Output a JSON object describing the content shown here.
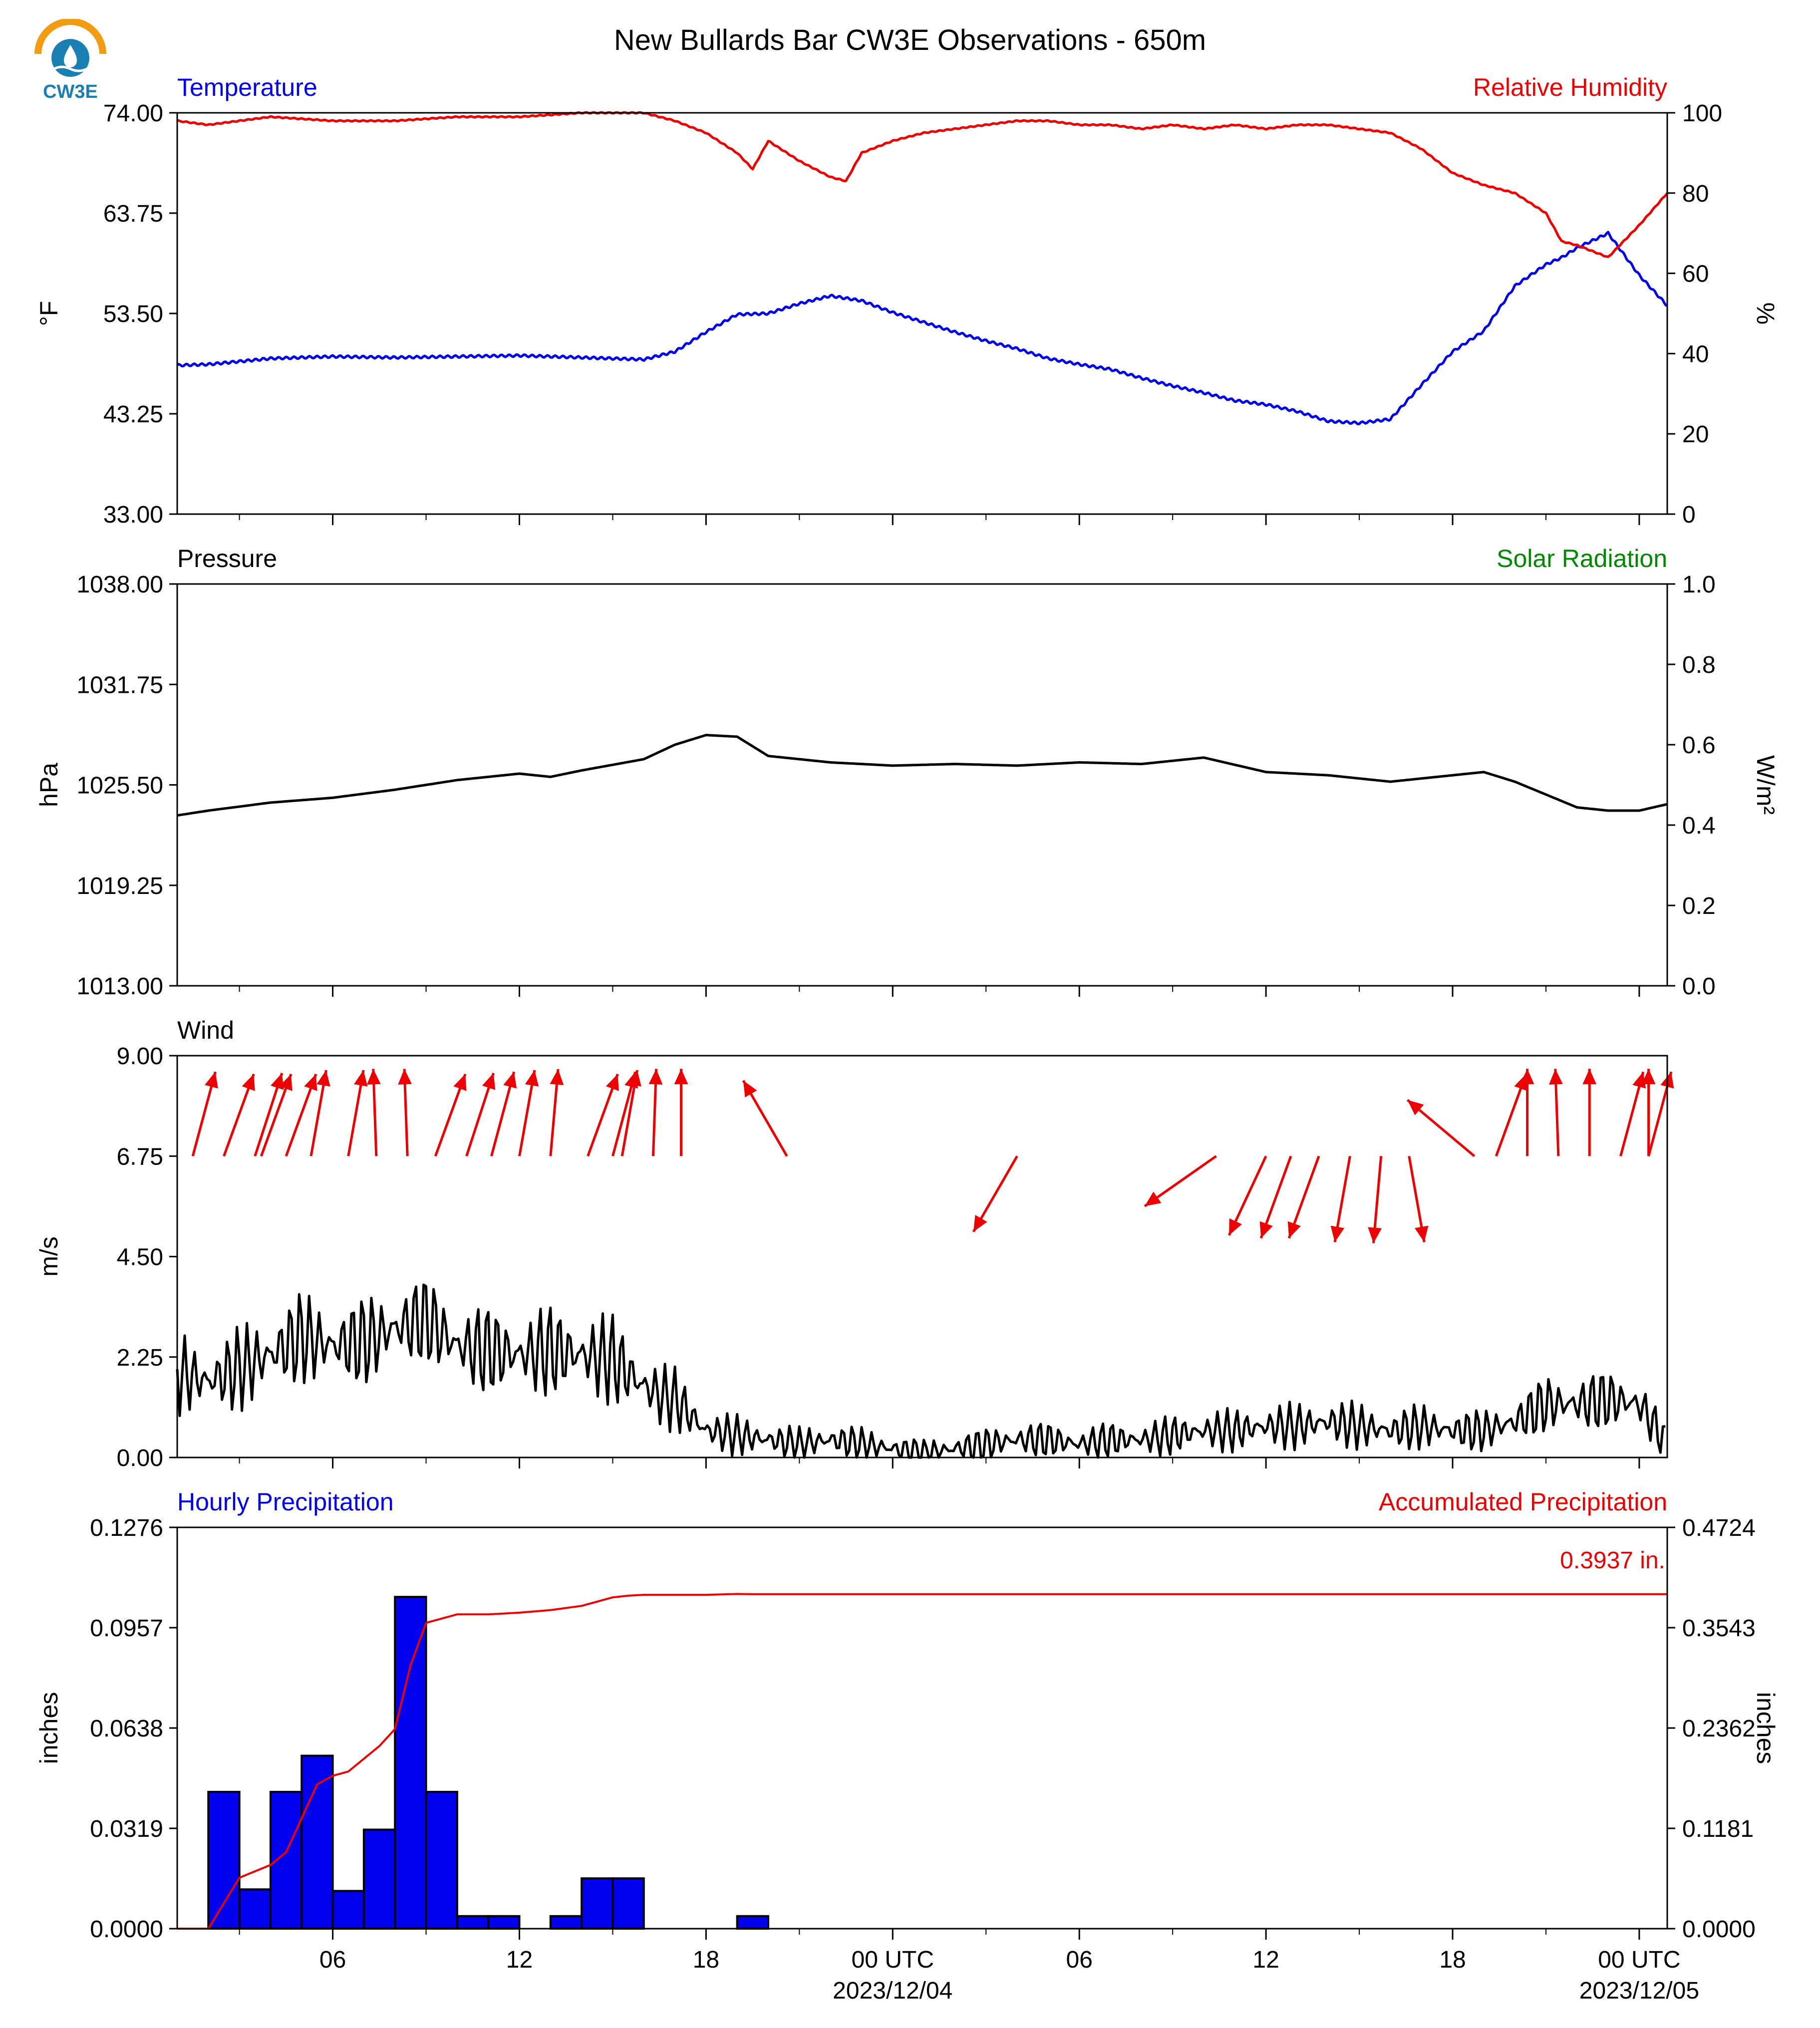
{
  "title": "New Bullards Bar CW3E Observations - 650m",
  "logo": {
    "text": "CW3E"
  },
  "colors": {
    "blue": "#0000ee",
    "red": "#ee0000",
    "green": "#008800",
    "black": "#000000"
  },
  "chart_data": [
    {
      "type": "line",
      "panel": "temperature-humidity",
      "left_title": "Temperature",
      "right_title": "Relative Humidity",
      "ylabel": "°F",
      "ylabel2": "%",
      "ylim": [
        33.0,
        74.0
      ],
      "y2lim": [
        0,
        100
      ],
      "yticks": [
        "74.00",
        "63.75",
        "53.50",
        "43.25",
        "33.00"
      ],
      "y2ticks": [
        "100",
        "80",
        "60",
        "40",
        "20",
        "0"
      ],
      "x_unit": "hours since 2023/12/03 00 UTC",
      "xlim": [
        1,
        48.9
      ],
      "series": [
        {
          "name": "Temperature",
          "color": "#0000ee",
          "x": [
            1,
            2,
            4,
            6,
            8,
            10,
            12,
            14,
            16,
            17,
            18,
            19,
            20,
            21,
            22,
            23,
            24,
            25,
            26,
            27,
            28,
            29,
            30,
            31,
            32,
            33,
            34,
            35,
            36,
            37,
            38,
            39,
            40,
            41,
            42,
            43,
            44,
            45,
            45.5,
            46,
            47,
            48,
            48.9
          ],
          "values": [
            48.2,
            48.3,
            48.9,
            49.1,
            49.0,
            49.1,
            49.2,
            49.0,
            48.8,
            49.6,
            51.6,
            53.4,
            53.5,
            54.5,
            55.3,
            54.8,
            53.6,
            52.6,
            51.6,
            50.7,
            49.9,
            48.9,
            48.3,
            47.8,
            46.9,
            46.1,
            45.4,
            44.6,
            44.2,
            43.5,
            42.5,
            42.3,
            42.7,
            46.2,
            49.6,
            51.7,
            56.3,
            58.5,
            59.2,
            60.2,
            61.7,
            57.4,
            54.3
          ]
        },
        {
          "name": "Relative Humidity",
          "color": "#ee0000",
          "x": [
            1,
            2,
            4,
            6,
            8,
            10,
            12,
            14,
            15.5,
            16,
            17,
            18,
            19,
            19.5,
            20,
            21,
            22,
            22.5,
            23,
            24,
            25,
            26,
            27,
            28,
            29,
            30,
            31,
            32,
            33,
            34,
            35,
            36,
            37,
            38,
            39,
            40,
            41,
            42,
            43,
            44,
            45,
            45.5,
            46,
            47,
            48,
            48.9
          ],
          "values": [
            98,
            97,
            99,
            98,
            98,
            99,
            99,
            100,
            100,
            100,
            98,
            95,
            90,
            86,
            93,
            88,
            84,
            83,
            90,
            93,
            95,
            96,
            97,
            98,
            98,
            97,
            97,
            96,
            97,
            96,
            97,
            96,
            97,
            97,
            96,
            95,
            91,
            85,
            82,
            80,
            75,
            68,
            67,
            64,
            72,
            80
          ]
        }
      ]
    },
    {
      "type": "line",
      "panel": "pressure-solar",
      "left_title": "Pressure",
      "right_title": "Solar Radiation",
      "ylabel": "hPa",
      "ylabel2": "W/m²",
      "ylim": [
        1013.0,
        1038.0
      ],
      "y2lim": [
        0.0,
        1.0
      ],
      "yticks": [
        "1038.00",
        "1031.75",
        "1025.50",
        "1019.25",
        "1013.00"
      ],
      "y2ticks": [
        "1.0",
        "0.8",
        "0.6",
        "0.4",
        "0.2",
        "0.0"
      ],
      "xlim": [
        1,
        48.9
      ],
      "series": [
        {
          "name": "Pressure",
          "color": "#000000",
          "x": [
            1,
            2,
            4,
            6,
            8,
            10,
            12,
            13,
            14,
            16,
            17,
            18,
            19,
            20,
            22,
            24,
            26,
            28,
            30,
            32,
            34,
            36,
            38,
            40,
            42,
            43,
            44,
            45,
            46,
            47,
            48,
            48.9
          ],
          "values": [
            1023.6,
            1023.9,
            1024.4,
            1024.7,
            1025.2,
            1025.8,
            1026.2,
            1026.0,
            1026.4,
            1027.1,
            1028.0,
            1028.6,
            1028.5,
            1027.3,
            1026.9,
            1026.7,
            1026.8,
            1026.7,
            1026.9,
            1026.8,
            1027.2,
            1026.3,
            1026.1,
            1025.7,
            1026.1,
            1026.3,
            1025.7,
            1024.9,
            1024.1,
            1023.9,
            1023.9,
            1024.3
          ]
        }
      ]
    },
    {
      "type": "line",
      "panel": "wind",
      "left_title": "Wind",
      "ylabel": "m/s",
      "ylim": [
        0.0,
        9.0
      ],
      "yticks": [
        "9.00",
        "6.75",
        "4.50",
        "2.25",
        "0.00"
      ],
      "xlim": [
        1,
        48.9
      ],
      "series": [
        {
          "name": "Wind speed",
          "color": "#000000",
          "x": [
            1,
            2,
            3,
            4,
            5,
            6,
            7,
            8,
            9,
            10,
            11,
            12,
            13,
            14,
            15,
            16,
            16.5,
            17,
            18,
            19,
            20,
            21,
            22,
            23,
            24,
            25,
            26,
            27,
            28,
            29,
            30,
            31,
            32,
            33,
            34,
            35,
            36,
            37,
            38,
            39,
            40,
            41,
            42,
            43,
            44,
            45,
            46,
            47,
            48,
            48.5,
            48.9
          ],
          "values": [
            1.9,
            1.7,
            2.0,
            2.3,
            2.7,
            2.5,
            2.6,
            2.9,
            3.1,
            2.5,
            2.4,
            2.3,
            2.4,
            2.3,
            2.2,
            1.6,
            1.4,
            1.3,
            0.6,
            0.5,
            0.4,
            0.3,
            0.4,
            0.3,
            0.2,
            0.1,
            0.2,
            0.3,
            0.4,
            0.4,
            0.3,
            0.4,
            0.4,
            0.5,
            0.6,
            0.6,
            0.7,
            0.7,
            0.8,
            0.7,
            0.6,
            0.7,
            0.6,
            0.6,
            0.8,
            1.2,
            1.2,
            1.3,
            1.2,
            0.7,
            0.3
          ]
        }
      ],
      "wind_arrows": {
        "color": "#ee0000",
        "from_deg": [
          195,
          200,
          198,
          200,
          200,
          190,
          190,
          178,
          178,
          200,
          198,
          195,
          190,
          185,
          200,
          195,
          190,
          182,
          180,
          150,
          30,
          55,
          25,
          20,
          20,
          10,
          5,
          350,
          130,
          200,
          180,
          178,
          180,
          195,
          195,
          180
        ],
        "x": [
          1.5,
          2.5,
          3.5,
          3.7,
          4.5,
          5.3,
          6.5,
          7.4,
          8.4,
          9.3,
          10.3,
          11.1,
          12.0,
          13.0,
          14.2,
          15.0,
          15.3,
          16.3,
          17.2,
          20.6,
          28.0,
          34.4,
          36.0,
          36.8,
          37.7,
          38.7,
          39.7,
          40.6,
          42.7,
          43.4,
          44.4,
          45.4,
          46.4,
          47.4,
          48.3,
          48.3
        ]
      }
    },
    {
      "type": "bar",
      "panel": "precipitation",
      "left_title": "Hourly Precipitation",
      "right_title": "Accumulated Precipitation",
      "ylabel": "inches",
      "ylabel2": "inches",
      "ylim": [
        0.0,
        0.1276
      ],
      "y2lim": [
        0.0,
        0.4724
      ],
      "yticks": [
        "0.1276",
        "0.0957",
        "0.0638",
        "0.0319",
        "0.0000"
      ],
      "y2ticks": [
        "0.4724",
        "0.3543",
        "0.2362",
        "0.1181",
        "0.0000"
      ],
      "total_label": "0.3937 in.",
      "xlim": [
        1,
        48.9
      ],
      "hourly": {
        "hour_start": [
          2,
          3,
          4,
          5,
          6,
          7,
          8,
          9,
          10,
          11,
          13,
          14,
          15,
          19
        ],
        "values": [
          0.0435,
          0.0125,
          0.0435,
          0.055,
          0.012,
          0.0315,
          0.1055,
          0.0435,
          0.004,
          0.004,
          0.004,
          0.016,
          0.016,
          0.004
        ]
      },
      "series": [
        {
          "name": "Accumulated Precipitation",
          "color": "#ee0000",
          "x": [
            1,
            2,
            2.5,
            3,
            4,
            4.5,
            5,
            5.5,
            6,
            6.5,
            7,
            7.5,
            8,
            8.5,
            9,
            9.5,
            10,
            11,
            12,
            13,
            14,
            14.5,
            15,
            15.5,
            16,
            17,
            18,
            19,
            19.5,
            20,
            24,
            30,
            36,
            40,
            44,
            48.9
          ],
          "values": [
            0,
            0,
            0.03,
            0.06,
            0.075,
            0.09,
            0.13,
            0.17,
            0.18,
            0.185,
            0.2,
            0.215,
            0.235,
            0.31,
            0.36,
            0.365,
            0.37,
            0.37,
            0.372,
            0.375,
            0.38,
            0.385,
            0.39,
            0.392,
            0.393,
            0.393,
            0.393,
            0.394,
            0.3937,
            0.3937,
            0.3937,
            0.3937,
            0.3937,
            0.3937,
            0.3937,
            0.3937
          ]
        }
      ]
    }
  ],
  "x_axis": {
    "tick_hours": [
      0,
      6,
      12,
      18,
      24,
      30,
      36,
      42,
      48
    ],
    "tick_labels": [
      "",
      "06",
      "12",
      "18",
      "00 UTC",
      "06",
      "12",
      "18",
      "00 UTC"
    ],
    "minor_hours": [
      3,
      9,
      15,
      21,
      27,
      33,
      39,
      45
    ],
    "date_labels": [
      {
        "hour": 24,
        "text": "2023/12/04"
      },
      {
        "hour": 48,
        "text": "2023/12/05"
      }
    ]
  }
}
